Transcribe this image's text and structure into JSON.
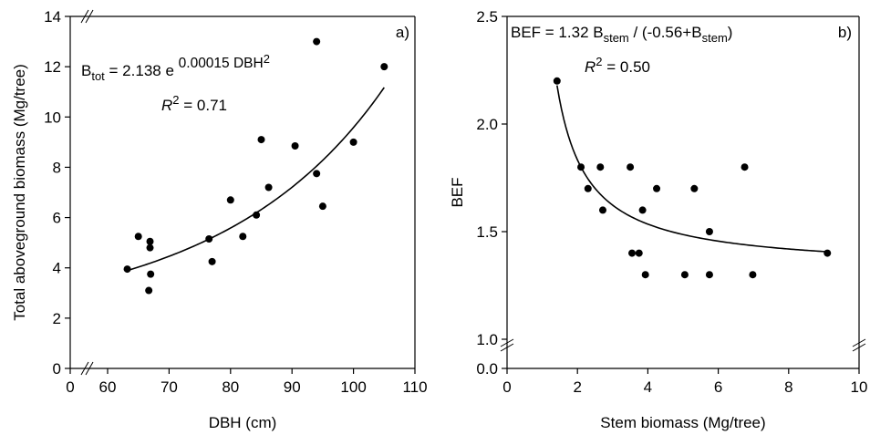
{
  "chart_data": [
    {
      "type": "scatter",
      "panel_label": "a)",
      "xlabel": "DBH (cm)",
      "ylabel": "Total aboveground biomass (Mg/tree)",
      "xlim": [
        0,
        110
      ],
      "ylim": [
        0,
        14
      ],
      "axis_break": "x between 0 and 60; y between 0 and 14 (broken axis)",
      "xticks": [
        "0",
        "60",
        "70",
        "80",
        "90",
        "100",
        "110"
      ],
      "yticks": [
        "0",
        "2",
        "4",
        "6",
        "8",
        "10",
        "12",
        "14"
      ],
      "equation": {
        "lhs": "B",
        "lhs_sub": "tot",
        "mid": " = 2.138 e ",
        "exp": "0.00015 DBH",
        "exp_pow": "2"
      },
      "r2": {
        "r": "R",
        "pow": "2",
        "val": " = 0.71"
      },
      "points": [
        {
          "x": 63.2,
          "y": 3.95
        },
        {
          "x": 65.0,
          "y": 5.25
        },
        {
          "x": 66.7,
          "y": 3.1
        },
        {
          "x": 66.9,
          "y": 5.05
        },
        {
          "x": 66.9,
          "y": 4.8
        },
        {
          "x": 67.0,
          "y": 3.75
        },
        {
          "x": 76.5,
          "y": 5.15
        },
        {
          "x": 77.0,
          "y": 4.25
        },
        {
          "x": 80.0,
          "y": 6.7
        },
        {
          "x": 82.0,
          "y": 5.25
        },
        {
          "x": 84.2,
          "y": 6.1
        },
        {
          "x": 85.0,
          "y": 9.1
        },
        {
          "x": 86.2,
          "y": 7.2
        },
        {
          "x": 90.5,
          "y": 8.85
        },
        {
          "x": 94.0,
          "y": 7.75
        },
        {
          "x": 94.0,
          "y": 13.0
        },
        {
          "x": 95.0,
          "y": 6.45
        },
        {
          "x": 100.0,
          "y": 9.0
        },
        {
          "x": 105.0,
          "y": 12.0
        }
      ],
      "fit": {
        "model": "2.138*exp(0.00015*x^2)",
        "x_from": 63.2,
        "x_to": 105
      }
    },
    {
      "type": "scatter",
      "panel_label": "b)",
      "xlabel": "Stem biomass (Mg/tree)",
      "ylabel": "BEF",
      "xlim": [
        0,
        10
      ],
      "ylim": [
        0,
        2.5
      ],
      "axis_break": "y between 0.0 and 1.0 (broken axis)",
      "xticks": [
        "0",
        "2",
        "4",
        "6",
        "8",
        "10"
      ],
      "yticks": [
        "0.0",
        "1.0",
        "1.5",
        "2.0",
        "2.5"
      ],
      "equation": {
        "p1": "BEF = 1.32 B",
        "s1": "stem",
        "p2": " / (-0.56+B",
        "s2": "stem",
        "p3": ")"
      },
      "r2": {
        "r": "R",
        "pow": "2",
        "val": " = 0.50"
      },
      "points": [
        {
          "x": 1.42,
          "y": 2.2
        },
        {
          "x": 2.1,
          "y": 1.8
        },
        {
          "x": 2.3,
          "y": 1.7
        },
        {
          "x": 2.65,
          "y": 1.8
        },
        {
          "x": 2.72,
          "y": 1.6
        },
        {
          "x": 3.5,
          "y": 1.8
        },
        {
          "x": 3.55,
          "y": 1.4
        },
        {
          "x": 3.75,
          "y": 1.4
        },
        {
          "x": 3.85,
          "y": 1.6
        },
        {
          "x": 3.93,
          "y": 1.3
        },
        {
          "x": 4.25,
          "y": 1.7
        },
        {
          "x": 5.05,
          "y": 1.3
        },
        {
          "x": 5.32,
          "y": 1.7
        },
        {
          "x": 5.75,
          "y": 1.5
        },
        {
          "x": 5.75,
          "y": 1.3
        },
        {
          "x": 6.75,
          "y": 1.8
        },
        {
          "x": 6.98,
          "y": 1.3
        },
        {
          "x": 9.1,
          "y": 1.4
        }
      ],
      "fit": {
        "model": "1.32*x/(-0.56+x)",
        "x_from": 1.42,
        "x_to": 9.1
      }
    }
  ]
}
